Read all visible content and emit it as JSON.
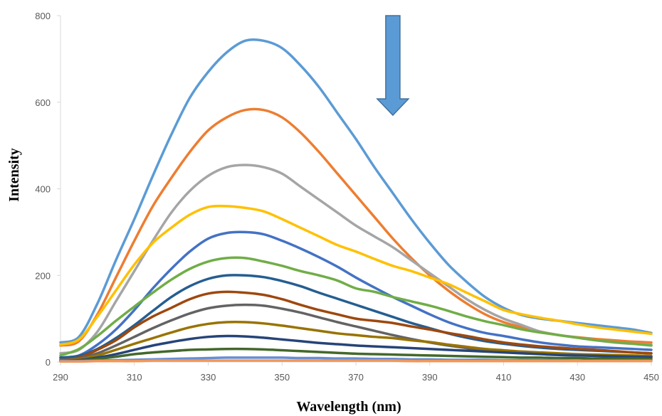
{
  "chart_data": {
    "type": "line",
    "title": "",
    "xlabel": "Wavelength (nm)",
    "ylabel": "Intensity",
    "xlim": [
      290,
      450
    ],
    "ylim": [
      0,
      800
    ],
    "x_ticks": [
      290,
      310,
      330,
      350,
      370,
      390,
      410,
      430,
      450
    ],
    "y_ticks": [
      0,
      200,
      400,
      600,
      800
    ],
    "grid": false,
    "legend": "none",
    "annotation": {
      "type": "downward-arrow",
      "meaning": "intensity decreases across successive curves",
      "color": "#5b9bd5",
      "edge_color": "#41719c",
      "x": 380,
      "y_top": 800,
      "y_bottom": 570
    },
    "x": [
      290,
      295,
      300,
      305,
      310,
      315,
      320,
      325,
      330,
      335,
      340,
      345,
      350,
      355,
      360,
      365,
      370,
      375,
      380,
      385,
      390,
      395,
      400,
      405,
      410,
      415,
      420,
      425,
      430,
      435,
      440,
      445,
      450
    ],
    "series": [
      {
        "color": "#5b9bd5",
        "values": [
          45,
          58,
          135,
          235,
          330,
          430,
          525,
          610,
          670,
          715,
          742,
          742,
          725,
          685,
          635,
          575,
          515,
          450,
          390,
          330,
          275,
          225,
          185,
          150,
          125,
          108,
          100,
          95,
          90,
          85,
          80,
          75,
          67
        ]
      },
      {
        "color": "#ed7d31",
        "values": [
          38,
          48,
          110,
          195,
          280,
          360,
          425,
          485,
          535,
          565,
          582,
          582,
          565,
          530,
          485,
          435,
          385,
          335,
          285,
          240,
          200,
          165,
          135,
          110,
          92,
          80,
          70,
          62,
          57,
          53,
          50,
          47,
          45
        ]
      },
      {
        "color": "#a5a5a5",
        "values": [
          20,
          28,
          70,
          140,
          210,
          280,
          345,
          395,
          430,
          450,
          455,
          450,
          435,
          405,
          375,
          345,
          315,
          290,
          265,
          235,
          205,
          175,
          145,
          120,
          100,
          85,
          70,
          62,
          56,
          50,
          45,
          42,
          40
        ]
      },
      {
        "color": "#ffc000",
        "values": [
          40,
          52,
          105,
          165,
          225,
          275,
          310,
          340,
          358,
          360,
          356,
          348,
          330,
          310,
          290,
          270,
          255,
          238,
          222,
          210,
          195,
          180,
          160,
          140,
          120,
          110,
          102,
          95,
          87,
          80,
          75,
          70,
          65
        ]
      },
      {
        "color": "#4472c4",
        "values": [
          10,
          15,
          40,
          75,
          120,
          170,
          215,
          255,
          285,
          298,
          300,
          295,
          280,
          262,
          242,
          220,
          195,
          172,
          150,
          130,
          110,
          92,
          78,
          67,
          60,
          52,
          45,
          40,
          36,
          34,
          32,
          30,
          28
        ]
      },
      {
        "color": "#70ad47",
        "values": [
          15,
          30,
          60,
          95,
          128,
          160,
          190,
          215,
          232,
          240,
          240,
          232,
          222,
          210,
          200,
          188,
          170,
          162,
          150,
          140,
          130,
          118,
          105,
          94,
          85,
          75,
          68,
          62,
          56,
          50,
          46,
          42,
          38
        ]
      },
      {
        "color": "#255e91",
        "values": [
          10,
          14,
          30,
          55,
          85,
          118,
          150,
          175,
          192,
          200,
          200,
          196,
          187,
          175,
          160,
          146,
          132,
          118,
          104,
          90,
          78,
          66,
          56,
          48,
          42,
          37,
          33,
          30,
          28,
          26,
          24,
          22,
          20
        ]
      },
      {
        "color": "#9e480e",
        "values": [
          5,
          10,
          28,
          50,
          80,
          105,
          125,
          145,
          158,
          162,
          160,
          155,
          145,
          132,
          120,
          110,
          100,
          95,
          90,
          82,
          75,
          67,
          60,
          52,
          45,
          40,
          36,
          33,
          30,
          28,
          25,
          22,
          20
        ]
      },
      {
        "color": "#636363",
        "values": [
          5,
          8,
          20,
          38,
          58,
          78,
          96,
          112,
          124,
          130,
          132,
          130,
          123,
          114,
          103,
          92,
          82,
          72,
          62,
          53,
          45,
          38,
          32,
          27,
          24,
          21,
          19,
          17,
          16,
          15,
          14,
          13,
          12
        ]
      },
      {
        "color": "#997300",
        "values": [
          3,
          6,
          15,
          28,
          42,
          55,
          68,
          80,
          88,
          92,
          92,
          89,
          84,
          78,
          72,
          66,
          62,
          58,
          55,
          50,
          46,
          40,
          35,
          30,
          27,
          24,
          22,
          20,
          18,
          17,
          16,
          15,
          14
        ]
      },
      {
        "color": "#264478",
        "values": [
          2,
          4,
          10,
          18,
          28,
          38,
          46,
          53,
          58,
          60,
          59,
          56,
          52,
          48,
          44,
          41,
          38,
          36,
          34,
          32,
          30,
          28,
          26,
          24,
          22,
          20,
          18,
          16,
          15,
          14,
          13,
          12,
          11
        ]
      },
      {
        "color": "#43682b",
        "values": [
          2,
          3,
          7,
          12,
          18,
          22,
          25,
          28,
          29,
          30,
          30,
          29,
          27,
          25,
          23,
          21,
          19,
          18,
          17,
          16,
          15,
          14,
          13,
          12,
          11,
          10,
          10,
          9,
          9,
          8,
          8,
          8,
          7
        ]
      },
      {
        "color": "#698ed0",
        "values": [
          2,
          2,
          3,
          4,
          5,
          6,
          7,
          8,
          9,
          10,
          10,
          10,
          10,
          9,
          9,
          8,
          8,
          7,
          7,
          6,
          6,
          5,
          5,
          5,
          4,
          4,
          4,
          4,
          3,
          3,
          3,
          3,
          3
        ]
      },
      {
        "color": "#f1975a",
        "values": [
          1,
          1,
          2,
          2,
          2,
          3,
          3,
          3,
          3,
          3,
          3,
          3,
          3,
          3,
          3,
          3,
          3,
          3,
          3,
          2,
          2,
          2,
          2,
          2,
          2,
          2,
          2,
          2,
          2,
          2,
          2,
          2,
          2
        ]
      }
    ]
  }
}
